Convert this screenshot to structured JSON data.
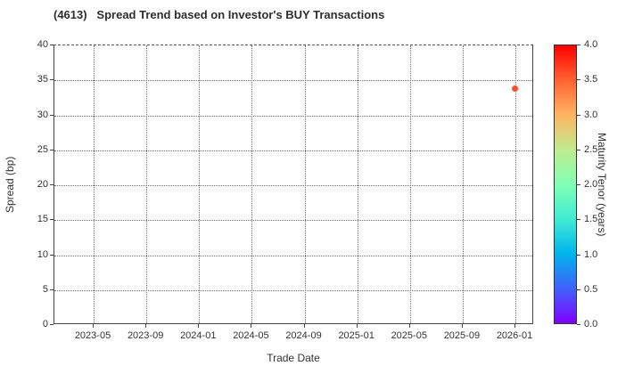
{
  "chart_data": {
    "type": "scatter",
    "title": "(4613)   Spread Trend based on Investor's BUY Transactions",
    "xlabel": "Trade Date",
    "ylabel": "Spread (bp)",
    "ylim": [
      0,
      40
    ],
    "yticks": [
      0,
      5,
      10,
      15,
      20,
      25,
      30,
      35,
      40
    ],
    "xticks": [
      "2023-05",
      "2023-09",
      "2024-01",
      "2024-05",
      "2024-09",
      "2025-01",
      "2025-05",
      "2025-09",
      "2026-01"
    ],
    "grid": true,
    "grid_style": "dotted",
    "points": [
      {
        "x": "2026-01",
        "y": 33.7,
        "maturity_tenor_years": 3.5
      }
    ],
    "point_color": "#F5532D",
    "colorbar": {
      "label": "Maturity Tenor (years)",
      "min": 0.0,
      "max": 4.0,
      "ticks": [
        "4.0",
        "3.5",
        "3.0",
        "2.5",
        "2.0",
        "1.5",
        "1.0",
        "0.5",
        "0.0"
      ],
      "colormap": "rainbow",
      "gradient_stops_bottom_to_top": [
        "#8000FF",
        "#4062FA",
        "#00B4EC",
        "#40ECD4",
        "#80FFB4",
        "#BFEC8E",
        "#FFB462",
        "#FF6232",
        "#FF0000"
      ]
    }
  }
}
